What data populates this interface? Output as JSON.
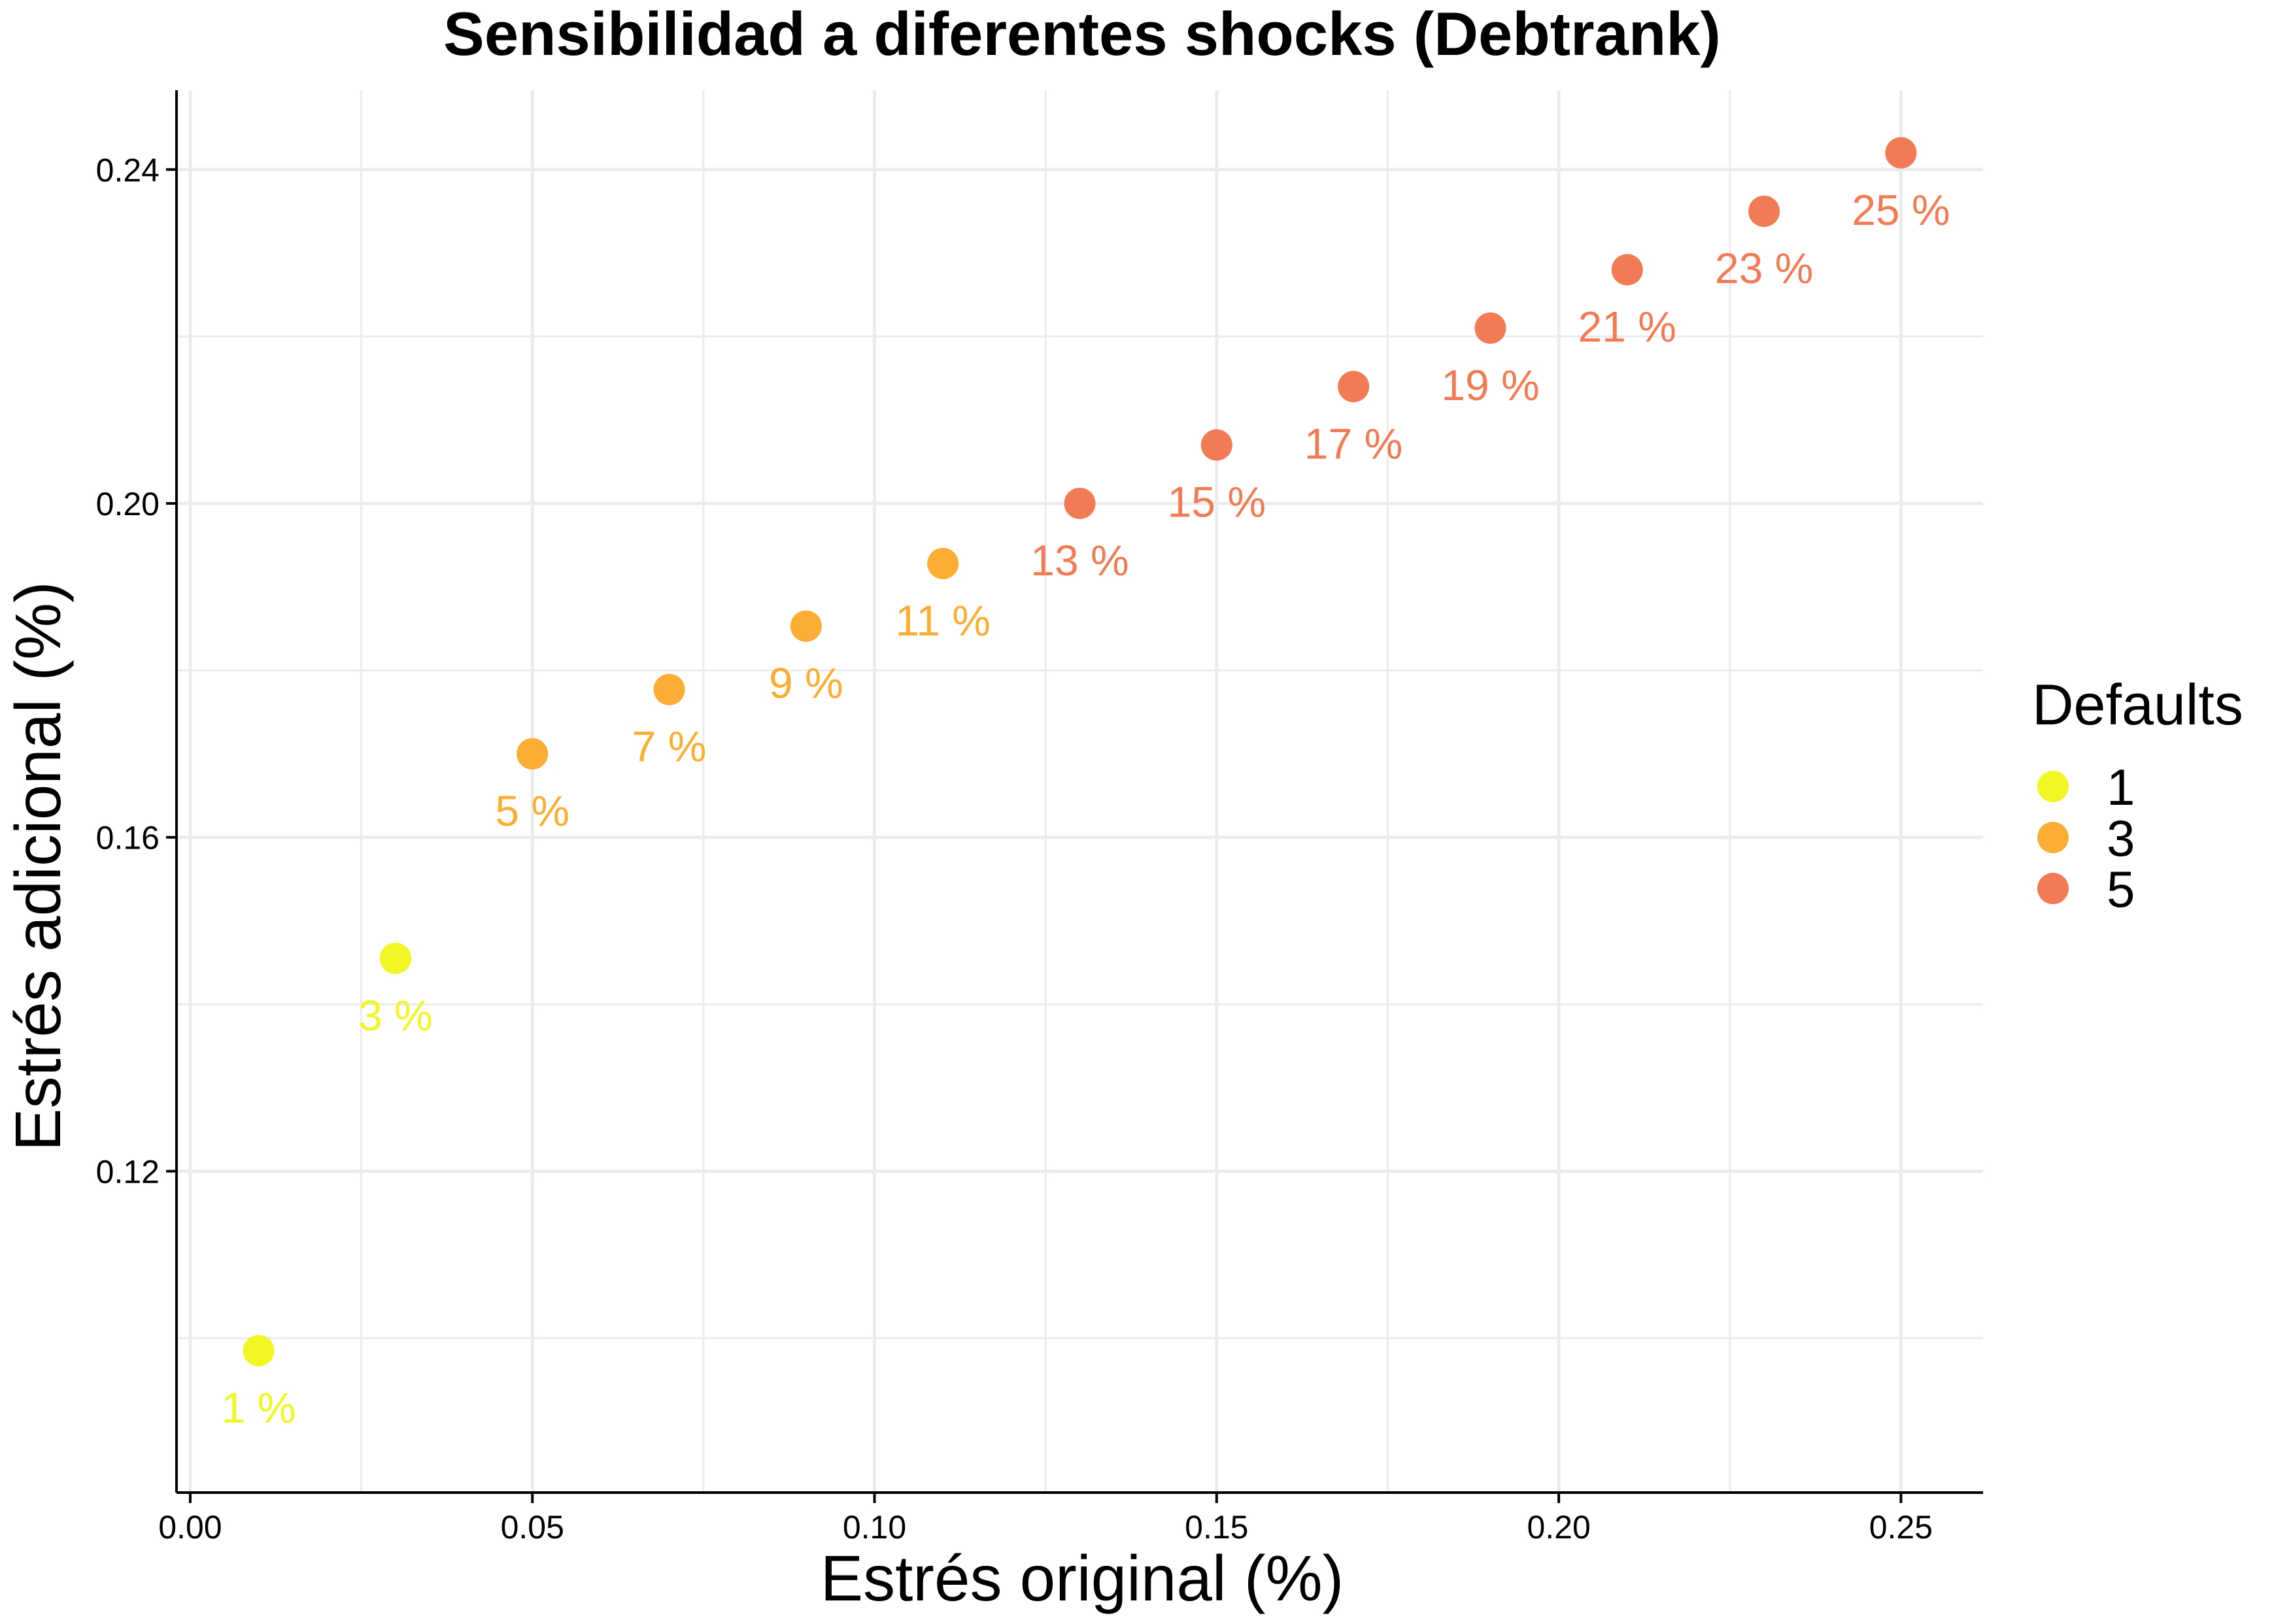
{
  "chart_data": {
    "type": "scatter",
    "title": "Sensibilidad a diferentes shocks (Debtrank)",
    "xlabel": "Estrés original (%)",
    "ylabel": "Estrés adicional (%)",
    "xlim": [
      -0.002,
      0.262
    ],
    "ylim": [
      0.0815,
      0.2495
    ],
    "x_ticks": [
      0.0,
      0.05,
      0.1,
      0.15,
      0.2,
      0.25
    ],
    "x_tick_labels": [
      "0.00",
      "0.05",
      "0.10",
      "0.15",
      "0.20",
      "0.25"
    ],
    "x_minor_ticks": [
      0.025,
      0.075,
      0.125,
      0.175,
      0.225
    ],
    "y_ticks": [
      0.12,
      0.16,
      0.2,
      0.24
    ],
    "y_tick_labels": [
      "0.12",
      "0.16",
      "0.20",
      "0.24"
    ],
    "y_minor_ticks": [
      0.1,
      0.14,
      0.18,
      0.22
    ],
    "grid": true,
    "legend": {
      "title": "Defaults",
      "position": "right",
      "entries": [
        {
          "label": "1",
          "color": "#f0f723"
        },
        {
          "label": "3",
          "color": "#fcad33"
        },
        {
          "label": "5",
          "color": "#f07b54"
        }
      ]
    },
    "points": [
      {
        "x": 0.01,
        "y": 0.0985,
        "label": "1 %",
        "defaults": "1",
        "color": "#f0f723"
      },
      {
        "x": 0.03,
        "y": 0.1455,
        "label": "3 %",
        "defaults": "1",
        "color": "#f0f723"
      },
      {
        "x": 0.05,
        "y": 0.17,
        "label": "5 %",
        "defaults": "3",
        "color": "#fcad33"
      },
      {
        "x": 0.07,
        "y": 0.1777,
        "label": "7 %",
        "defaults": "3",
        "color": "#fcad33"
      },
      {
        "x": 0.09,
        "y": 0.1853,
        "label": "9 %",
        "defaults": "3",
        "color": "#fcad33"
      },
      {
        "x": 0.11,
        "y": 0.1928,
        "label": "11 %",
        "defaults": "3",
        "color": "#fcad33"
      },
      {
        "x": 0.13,
        "y": 0.2,
        "label": "13 %",
        "defaults": "5",
        "color": "#f07b54"
      },
      {
        "x": 0.15,
        "y": 0.207,
        "label": "15 %",
        "defaults": "5",
        "color": "#f07b54"
      },
      {
        "x": 0.17,
        "y": 0.214,
        "label": "17 %",
        "defaults": "5",
        "color": "#f07b54"
      },
      {
        "x": 0.19,
        "y": 0.221,
        "label": "19 %",
        "defaults": "5",
        "color": "#f07b54"
      },
      {
        "x": 0.21,
        "y": 0.228,
        "label": "21 %",
        "defaults": "5",
        "color": "#f07b54"
      },
      {
        "x": 0.23,
        "y": 0.235,
        "label": "23 %",
        "defaults": "5",
        "color": "#f07b54"
      },
      {
        "x": 0.25,
        "y": 0.242,
        "label": "25 %",
        "defaults": "5",
        "color": "#f07b54"
      }
    ]
  }
}
